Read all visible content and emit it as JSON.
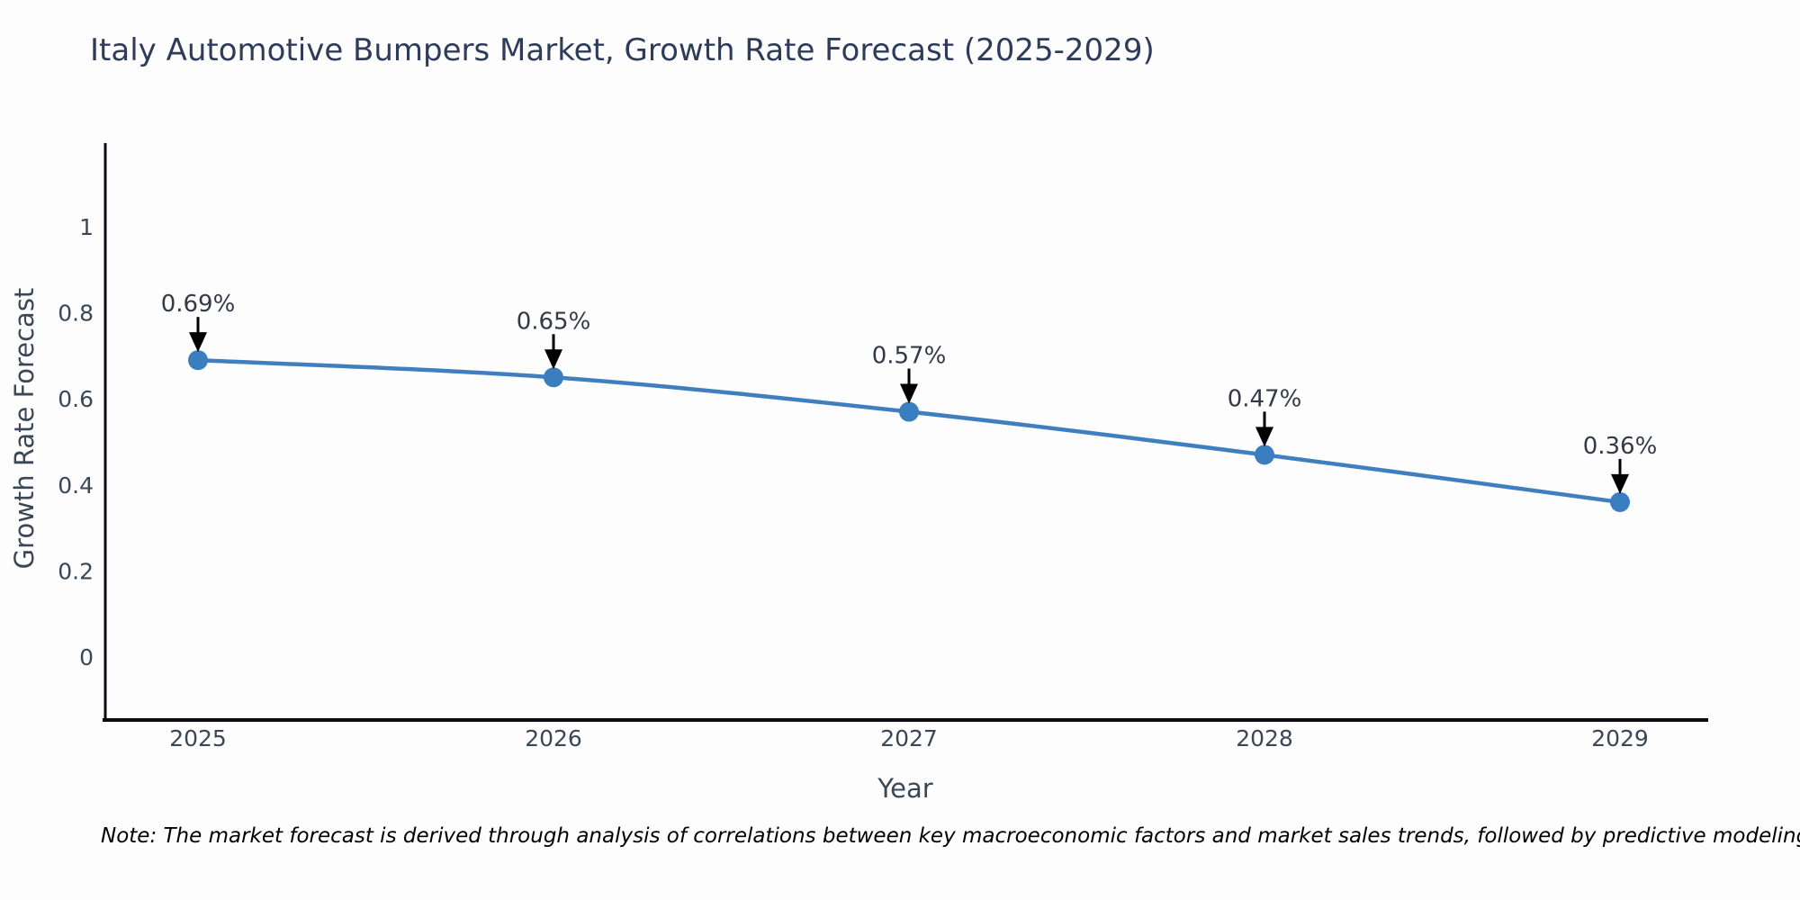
{
  "title": "Italy Automotive Bumpers Market, Growth Rate Forecast (2025-2029)",
  "note": "Note: The market forecast is derived through analysis of correlations between key macroeconomic factors and market sales trends, followed by predictive modeling to project future sales",
  "colors": {
    "line": "#3f7fbf",
    "marker": "#3a7ebf",
    "axis": "#0b0b0f",
    "title_text": "#2e3c5a",
    "tick_text": "#3b4757",
    "annotation_text": "#333a45",
    "arrow": "#000000",
    "note_text": "#000000",
    "background": "#fdfdfd"
  },
  "chart_data": {
    "type": "line",
    "x": [
      "2025",
      "2026",
      "2027",
      "2028",
      "2029"
    ],
    "values": [
      0.69,
      0.65,
      0.57,
      0.47,
      0.36
    ],
    "point_labels": [
      "0.69%",
      "0.65%",
      "0.57%",
      "0.47%",
      "0.36%"
    ],
    "yticks": {
      "values": [
        0,
        0.2,
        0.4,
        0.6,
        0.8,
        1
      ],
      "labels": [
        "0",
        "0.2",
        "0.4",
        "0.6",
        "0.8",
        "1"
      ]
    },
    "title": "Italy Automotive Bumpers Market, Growth Rate Forecast (2025-2029)",
    "xlabel": "Year",
    "ylabel": "Growth Rate Forecast",
    "ylim": [
      -0.15,
      1.2
    ],
    "grid": false,
    "legend": "none",
    "annotations": "value labels with downward arrows above each data point"
  }
}
